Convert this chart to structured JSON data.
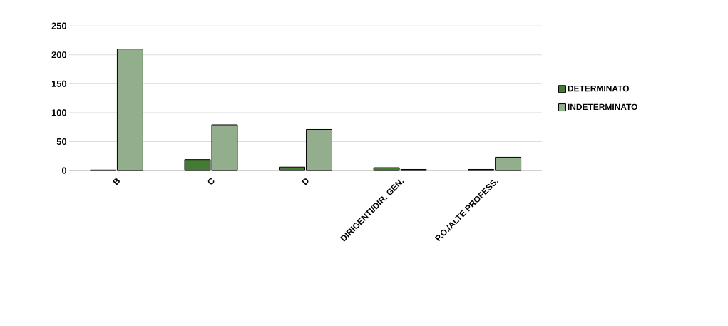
{
  "chart_data": {
    "type": "bar",
    "categories": [
      "B",
      "C",
      "D",
      "DIRIGENTI/DIR. GEN.",
      "P.O./ALTE PROFESS."
    ],
    "series": [
      {
        "name": "DETERMINATO",
        "color": "#457a35",
        "values": [
          1,
          19,
          6,
          5,
          2
        ]
      },
      {
        "name": "INDETERMINATO",
        "color": "#93ae8c",
        "values": [
          210,
          79,
          71,
          2,
          23
        ]
      }
    ],
    "ylim": [
      0,
      250
    ],
    "yticks": [
      0,
      50,
      100,
      150,
      200,
      250
    ],
    "grid": "y",
    "legend": "right"
  }
}
